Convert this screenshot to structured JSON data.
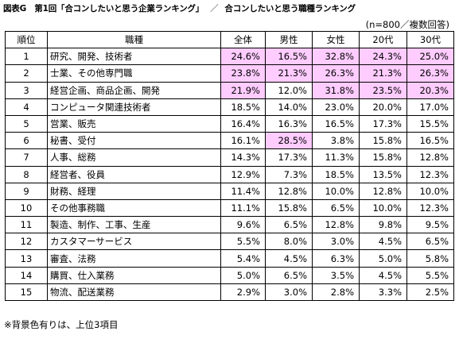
{
  "title": {
    "main": "図表G　第1回「合コンしたいと思う企業ランキング」",
    "separator": "／",
    "sub": "合コンしたいと思う職種ランキング"
  },
  "sample_note": "(n=800／複数回答)",
  "footnote": "※背景色有りは、上位3項目",
  "highlight_color": "#ffccff",
  "table": {
    "headers": [
      "順位",
      "職種",
      "全体",
      "男性",
      "女性",
      "20代",
      "30代"
    ],
    "rows": [
      {
        "rank": "1",
        "job": "研究、開発、技術者",
        "values": [
          "24.6%",
          "16.5%",
          "32.8%",
          "24.3%",
          "25.0%"
        ],
        "hl": [
          true,
          true,
          true,
          true,
          true
        ]
      },
      {
        "rank": "2",
        "job": "士業、その他専門職",
        "values": [
          "23.8%",
          "21.3%",
          "26.3%",
          "21.3%",
          "26.3%"
        ],
        "hl": [
          true,
          true,
          true,
          true,
          true
        ]
      },
      {
        "rank": "3",
        "job": "経営企画、商品企画、開発",
        "values": [
          "21.9%",
          "12.0%",
          "31.8%",
          "23.5%",
          "20.3%"
        ],
        "hl": [
          true,
          false,
          true,
          true,
          true
        ]
      },
      {
        "rank": "4",
        "job": "コンピュータ関連技術者",
        "values": [
          "18.5%",
          "14.0%",
          "23.0%",
          "20.0%",
          "17.0%"
        ],
        "hl": [
          false,
          false,
          false,
          false,
          false
        ]
      },
      {
        "rank": "5",
        "job": "営業、販売",
        "values": [
          "16.4%",
          "16.3%",
          "16.5%",
          "17.3%",
          "15.5%"
        ],
        "hl": [
          false,
          false,
          false,
          false,
          false
        ]
      },
      {
        "rank": "6",
        "job": "秘書、受付",
        "values": [
          "16.1%",
          "28.5%",
          "3.8%",
          "15.8%",
          "16.5%"
        ],
        "hl": [
          false,
          true,
          false,
          false,
          false
        ]
      },
      {
        "rank": "7",
        "job": "人事、総務",
        "values": [
          "14.3%",
          "17.3%",
          "11.3%",
          "15.8%",
          "12.8%"
        ],
        "hl": [
          false,
          false,
          false,
          false,
          false
        ]
      },
      {
        "rank": "8",
        "job": "経営者、役員",
        "values": [
          "12.9%",
          "7.3%",
          "18.5%",
          "13.5%",
          "12.3%"
        ],
        "hl": [
          false,
          false,
          false,
          false,
          false
        ]
      },
      {
        "rank": "9",
        "job": "財務、経理",
        "values": [
          "11.4%",
          "12.8%",
          "10.0%",
          "12.8%",
          "10.0%"
        ],
        "hl": [
          false,
          false,
          false,
          false,
          false
        ]
      },
      {
        "rank": "10",
        "job": "その他事務職",
        "values": [
          "11.1%",
          "15.8%",
          "6.5%",
          "10.0%",
          "12.3%"
        ],
        "hl": [
          false,
          false,
          false,
          false,
          false
        ]
      },
      {
        "rank": "11",
        "job": "製造、制作、工事、生産",
        "values": [
          "9.6%",
          "6.5%",
          "12.8%",
          "9.8%",
          "9.5%"
        ],
        "hl": [
          false,
          false,
          false,
          false,
          false
        ]
      },
      {
        "rank": "12",
        "job": "カスタマーサービス",
        "values": [
          "5.5%",
          "8.0%",
          "3.0%",
          "4.5%",
          "6.5%"
        ],
        "hl": [
          false,
          false,
          false,
          false,
          false
        ]
      },
      {
        "rank": "13",
        "job": "審査、法務",
        "values": [
          "5.4%",
          "4.5%",
          "6.3%",
          "5.0%",
          "5.8%"
        ],
        "hl": [
          false,
          false,
          false,
          false,
          false
        ]
      },
      {
        "rank": "14",
        "job": "購買、仕入業務",
        "values": [
          "5.0%",
          "6.5%",
          "3.5%",
          "4.5%",
          "5.5%"
        ],
        "hl": [
          false,
          false,
          false,
          false,
          false
        ]
      },
      {
        "rank": "15",
        "job": "物流、配送業務",
        "values": [
          "2.9%",
          "3.0%",
          "2.8%",
          "3.3%",
          "2.5%"
        ],
        "hl": [
          false,
          false,
          false,
          false,
          false
        ]
      }
    ]
  }
}
